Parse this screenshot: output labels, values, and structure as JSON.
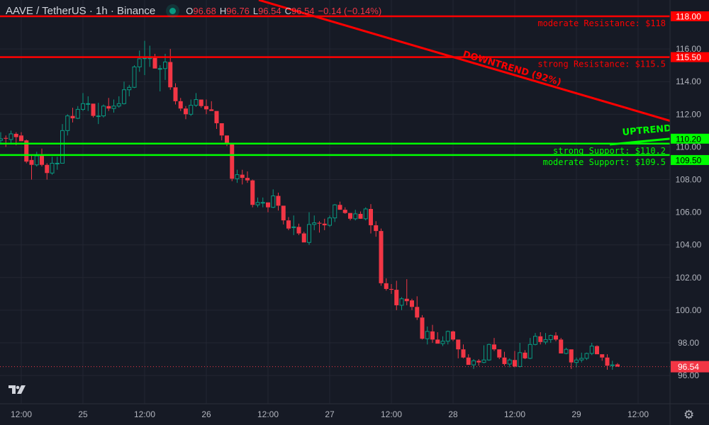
{
  "header": {
    "symbol": "AAVE / TetherUS · 1h · Binance",
    "status_color": "#089981",
    "o_label": "O",
    "o": "96.68",
    "h_label": "H",
    "h": "96.76",
    "l_label": "L",
    "l": "96.54",
    "c_label": "C",
    "c": "96.54",
    "change": "−0.14 (−0.14%)"
  },
  "chart_data": {
    "type": "candlestick",
    "interval": "1h",
    "ylim": [
      95.5,
      119
    ],
    "y_ticks": [
      96,
      98,
      100,
      102,
      104,
      106,
      108,
      110,
      112,
      114,
      116
    ],
    "x_ticks": [
      "12:00",
      "25",
      "12:00",
      "26",
      "12:00",
      "27",
      "12:00",
      "28",
      "12:00",
      "29",
      "12:00"
    ],
    "grid": true,
    "colors": {
      "up": "#089981",
      "down": "#f23645",
      "resistance": "#ff0000",
      "support": "#00ff00",
      "background": "#161a25",
      "grid": "#232632"
    },
    "candle_style": "hollow-up",
    "ohlc": [
      [
        110.4,
        110.9,
        110.2,
        110.5
      ],
      [
        110.55,
        110.7,
        110.0,
        110.5
      ],
      [
        110.45,
        111.0,
        110.2,
        110.8
      ],
      [
        110.8,
        110.9,
        110.1,
        110.6
      ],
      [
        110.7,
        110.9,
        110.35,
        110.35
      ],
      [
        110.4,
        110.45,
        109.0,
        109.1
      ],
      [
        109.2,
        109.5,
        108.0,
        108.9
      ],
      [
        108.9,
        109.7,
        108.8,
        109.45
      ],
      [
        109.45,
        109.9,
        108.8,
        108.9
      ],
      [
        108.9,
        109.0,
        108.0,
        108.4
      ],
      [
        108.4,
        109.4,
        108.3,
        109.0
      ],
      [
        109.0,
        109.4,
        108.6,
        109.0
      ],
      [
        109.0,
        111.4,
        109.0,
        111.0
      ],
      [
        111.0,
        112.0,
        110.7,
        111.9
      ],
      [
        111.9,
        112.4,
        111.5,
        111.75
      ],
      [
        111.75,
        112.5,
        111.7,
        112.3
      ],
      [
        112.3,
        113.3,
        112.2,
        112.65
      ],
      [
        112.65,
        113.1,
        112.2,
        112.65
      ],
      [
        112.65,
        112.65,
        111.8,
        111.9
      ],
      [
        111.9,
        112.7,
        111.4,
        111.9
      ],
      [
        111.9,
        112.6,
        111.8,
        112.5
      ],
      [
        112.5,
        113.0,
        112.2,
        112.35
      ],
      [
        112.35,
        112.9,
        112.1,
        112.5
      ],
      [
        112.5,
        113.1,
        112.4,
        112.65
      ],
      [
        112.65,
        114.0,
        112.6,
        113.5
      ],
      [
        113.5,
        113.8,
        113.1,
        113.65
      ],
      [
        113.65,
        115.0,
        113.6,
        114.9
      ],
      [
        114.9,
        115.9,
        114.6,
        115.4
      ],
      [
        115.45,
        116.5,
        114.4,
        115.45
      ],
      [
        115.45,
        116.2,
        114.9,
        115.45
      ],
      [
        115.45,
        115.7,
        114.8,
        114.8
      ],
      [
        114.8,
        115.0,
        113.4,
        114.8
      ],
      [
        114.8,
        115.7,
        114.1,
        115.2
      ],
      [
        115.2,
        116.0,
        113.5,
        113.65
      ],
      [
        113.65,
        113.9,
        112.6,
        112.8
      ],
      [
        112.8,
        113.0,
        112.2,
        112.35
      ],
      [
        112.35,
        112.5,
        111.7,
        112.0
      ],
      [
        112.0,
        112.9,
        111.9,
        112.55
      ],
      [
        112.55,
        113.3,
        112.45,
        112.9
      ],
      [
        112.9,
        112.9,
        112.4,
        112.5
      ],
      [
        112.5,
        112.9,
        112.0,
        112.3
      ],
      [
        112.3,
        112.8,
        112.2,
        112.2
      ],
      [
        112.2,
        112.2,
        111.1,
        111.45
      ],
      [
        111.45,
        111.45,
        110.4,
        110.7
      ],
      [
        110.7,
        110.7,
        110.05,
        110.15
      ],
      [
        110.15,
        110.2,
        107.9,
        108.05
      ],
      [
        108.05,
        108.6,
        107.8,
        108.3
      ],
      [
        108.3,
        108.6,
        107.7,
        108.1
      ],
      [
        108.1,
        108.5,
        107.8,
        107.95
      ],
      [
        107.95,
        108.0,
        106.3,
        106.45
      ],
      [
        106.45,
        106.9,
        106.3,
        106.6
      ],
      [
        106.6,
        106.9,
        106.3,
        106.6
      ],
      [
        106.6,
        106.6,
        106.0,
        106.3
      ],
      [
        106.3,
        107.4,
        106.25,
        107.0
      ],
      [
        107.0,
        107.2,
        106.1,
        106.4
      ],
      [
        106.4,
        106.4,
        105.25,
        105.5
      ],
      [
        105.5,
        105.7,
        104.9,
        105.0
      ],
      [
        105.1,
        105.8,
        104.6,
        105.1
      ],
      [
        105.1,
        105.3,
        104.6,
        104.7
      ],
      [
        104.7,
        104.8,
        104.15,
        104.15
      ],
      [
        104.15,
        106.0,
        104.0,
        105.25
      ],
      [
        105.25,
        105.8,
        104.9,
        105.35
      ],
      [
        105.35,
        105.45,
        104.75,
        105.3
      ],
      [
        105.3,
        105.6,
        104.9,
        105.2
      ],
      [
        105.2,
        105.8,
        105.1,
        105.65
      ],
      [
        105.65,
        106.5,
        105.4,
        106.45
      ],
      [
        106.45,
        106.65,
        106.2,
        106.15
      ],
      [
        106.15,
        106.3,
        105.9,
        105.95
      ],
      [
        105.95,
        105.95,
        105.5,
        105.6
      ],
      [
        105.6,
        106.15,
        105.5,
        105.9
      ],
      [
        105.9,
        106.05,
        105.7,
        105.6
      ],
      [
        105.6,
        106.3,
        105.5,
        106.2
      ],
      [
        106.2,
        106.5,
        104.7,
        105.2
      ],
      [
        105.2,
        105.45,
        104.5,
        104.85
      ],
      [
        104.85,
        105.0,
        101.5,
        101.65
      ],
      [
        101.65,
        101.95,
        101.2,
        101.3
      ],
      [
        101.3,
        101.6,
        101.0,
        101.25
      ],
      [
        101.25,
        101.8,
        100.0,
        100.3
      ],
      [
        100.3,
        100.8,
        100.0,
        100.7
      ],
      [
        100.7,
        101.9,
        100.3,
        100.55
      ],
      [
        100.6,
        100.7,
        100.0,
        100.2
      ],
      [
        100.2,
        100.85,
        99.4,
        99.55
      ],
      [
        99.55,
        99.7,
        98.2,
        98.25
      ],
      [
        98.25,
        99.0,
        97.9,
        98.7
      ],
      [
        98.7,
        99.1,
        98.0,
        98.2
      ],
      [
        98.2,
        98.65,
        97.95,
        97.95
      ],
      [
        97.95,
        98.4,
        97.8,
        98.1
      ],
      [
        98.1,
        98.75,
        97.9,
        98.7
      ],
      [
        98.7,
        98.75,
        98.1,
        98.2
      ],
      [
        98.2,
        98.2,
        97.05,
        97.6
      ],
      [
        97.6,
        97.9,
        97.05,
        97.1
      ],
      [
        97.1,
        97.3,
        96.65,
        96.65
      ],
      [
        96.65,
        97.0,
        96.4,
        96.9
      ],
      [
        96.9,
        97.0,
        96.6,
        96.8
      ],
      [
        96.8,
        97.85,
        96.75,
        96.95
      ],
      [
        96.95,
        97.95,
        96.9,
        97.9
      ],
      [
        97.9,
        98.3,
        97.5,
        97.6
      ],
      [
        97.6,
        97.6,
        97.0,
        97.1
      ],
      [
        97.1,
        97.45,
        96.6,
        96.7
      ],
      [
        96.7,
        97.05,
        96.5,
        96.95
      ],
      [
        96.95,
        97.5,
        96.5,
        96.55
      ],
      [
        96.55,
        98.0,
        96.5,
        97.4
      ],
      [
        97.4,
        97.55,
        97.0,
        97.05
      ],
      [
        97.05,
        98.3,
        97.0,
        97.9
      ],
      [
        97.9,
        98.6,
        97.85,
        98.4
      ],
      [
        98.4,
        98.65,
        97.9,
        98.05
      ],
      [
        98.05,
        98.6,
        97.9,
        98.2
      ],
      [
        98.2,
        98.5,
        98.0,
        98.45
      ],
      [
        98.45,
        98.65,
        98.1,
        98.2
      ],
      [
        98.2,
        98.3,
        97.35,
        97.35
      ],
      [
        97.35,
        97.7,
        97.3,
        97.6
      ],
      [
        97.6,
        97.6,
        96.4,
        96.8
      ],
      [
        96.8,
        97.1,
        96.5,
        96.95
      ],
      [
        96.95,
        97.4,
        96.8,
        97.05
      ],
      [
        97.05,
        97.4,
        96.95,
        97.35
      ],
      [
        97.35,
        98.0,
        97.25,
        97.8
      ],
      [
        97.8,
        97.85,
        97.3,
        97.3
      ],
      [
        97.3,
        97.3,
        96.9,
        97.1
      ],
      [
        97.1,
        97.3,
        96.35,
        96.6
      ],
      [
        96.6,
        96.9,
        96.35,
        96.65
      ],
      [
        96.68,
        96.76,
        96.54,
        96.54
      ]
    ],
    "levels": [
      {
        "price": 118.0,
        "axis_label": "118.00",
        "text": "moderate Resistance: $118",
        "color": "#ff0000"
      },
      {
        "price": 115.5,
        "axis_label": "115.50",
        "text": "strong Resistance: $115.5",
        "color": "#ff0000"
      },
      {
        "price": 110.2,
        "axis_label": "110.20",
        "text": "strong Support: $110.2",
        "color": "#00ff00"
      },
      {
        "price": 109.5,
        "axis_label": "109.50",
        "text": "moderate Support: $109.5",
        "color": "#00ff00"
      }
    ],
    "trendlines": [
      {
        "label": "DOWNTREND (92%)",
        "color": "#ff0000",
        "start_price": 119.0,
        "end_price": 111.6
      },
      {
        "label": "UPTREND",
        "color": "#00ff00",
        "start_price": 110.15,
        "end_price": 110.5
      }
    ],
    "last_price": {
      "value": 96.54,
      "label": "96.54",
      "color": "#f23645"
    }
  }
}
